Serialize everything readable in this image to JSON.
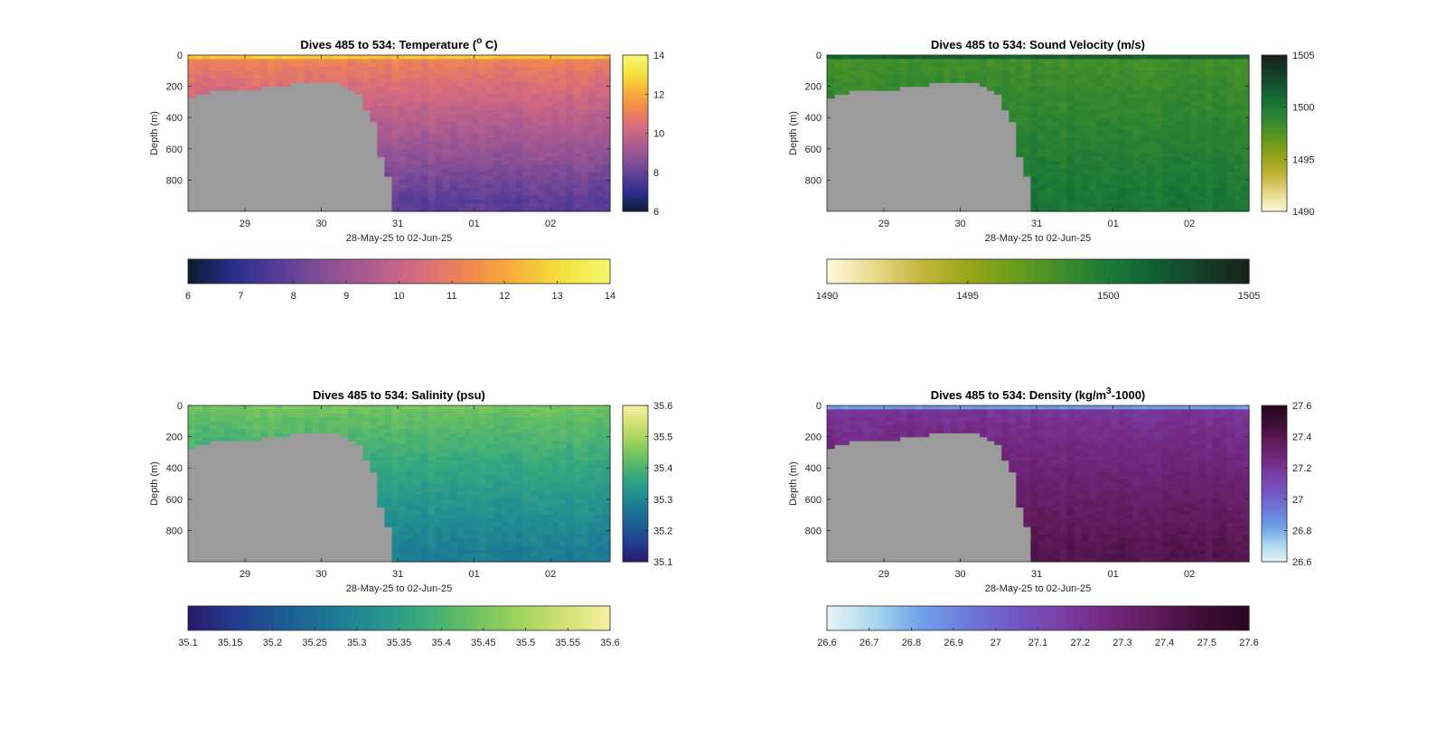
{
  "shared": {
    "xlabel": "28-May-25 to 02-Jun-25",
    "ylabel": "Depth (m)",
    "x_ticks": [
      "29",
      "30",
      "31",
      "01",
      "02"
    ],
    "y_ticks": [
      "0",
      "200",
      "400",
      "600",
      "800"
    ]
  },
  "chart_data": [
    {
      "type": "heatmap",
      "title": "Dives 485 to 534: Temperature (° C)",
      "title_prefix": "Dives 485 to 534: Temperature (",
      "title_sup": "o",
      "title_suffix": " C)",
      "xlabel": "28-May-25 to 02-Jun-25",
      "ylabel": "Depth (m)",
      "x_range_days": [
        "2025-05-28",
        "2025-06-02"
      ],
      "ylim": [
        0,
        1000
      ],
      "y_reversed": true,
      "clim": [
        6,
        14
      ],
      "colormap": [
        "#0b1d33",
        "#2b2f8f",
        "#5a3d96",
        "#8b5196",
        "#b45e8e",
        "#d86d7c",
        "#f2884d",
        "#f9b13a",
        "#f3e23d",
        "#f5f76d"
      ],
      "side_colorbar_ticks": [
        "6",
        "8",
        "10",
        "12",
        "14"
      ],
      "horizontal_colorbar_ticks": [
        "6",
        "7",
        "8",
        "9",
        "10",
        "11",
        "12",
        "13",
        "14"
      ],
      "surface_value": 12.6,
      "upper_value": 11.2,
      "deep_value": 7.8,
      "masked_color": "#9b9b9b"
    },
    {
      "type": "heatmap",
      "title": "Dives 485 to 534: Sound Velocity (m/s)",
      "title_prefix": "Dives 485 to 534: Sound Velocity (m/s)",
      "title_sup": "",
      "title_suffix": "",
      "xlabel": "28-May-25 to 02-Jun-25",
      "ylabel": "Depth (m)",
      "x_range_days": [
        "2025-05-28",
        "2025-06-02"
      ],
      "ylim": [
        0,
        1000
      ],
      "y_reversed": true,
      "clim": [
        1490,
        1505
      ],
      "colormap": [
        "#fdf8d6",
        "#e7d98a",
        "#c5b53d",
        "#9aa61a",
        "#6b9c1b",
        "#3f8d2c",
        "#1d7a37",
        "#125f32",
        "#14402a",
        "#17231a"
      ],
      "side_colorbar_ticks": [
        "1490",
        "1495",
        "1500",
        "1505"
      ],
      "horizontal_colorbar_ticks": [
        "1490",
        "1495",
        "1500",
        "1505"
      ],
      "surface_value": 1501.5,
      "upper_value": 1498.2,
      "deep_value": 1500.3,
      "masked_color": "#9b9b9b"
    },
    {
      "type": "heatmap",
      "title": "Dives 485 to 534: Salinity (psu)",
      "title_prefix": "Dives 485 to 534: Salinity (psu)",
      "title_sup": "",
      "title_suffix": "",
      "xlabel": "28-May-25 to 02-Jun-25",
      "ylabel": "Depth (m)",
      "x_range_days": [
        "2025-05-28",
        "2025-06-02"
      ],
      "ylim": [
        0,
        1000
      ],
      "y_reversed": true,
      "clim": [
        35.1,
        35.6
      ],
      "colormap": [
        "#2a1a6b",
        "#233d8f",
        "#1d5b94",
        "#1c7794",
        "#249290",
        "#3aaa7d",
        "#67bf63",
        "#9cd25b",
        "#d0e172",
        "#f5efa0"
      ],
      "side_colorbar_ticks": [
        "35.1",
        "35.2",
        "35.3",
        "35.4",
        "35.5",
        "35.6"
      ],
      "horizontal_colorbar_ticks": [
        "35.1",
        "35.15",
        "35.2",
        "35.25",
        "35.3",
        "35.35",
        "35.4",
        "35.45",
        "35.5",
        "35.55",
        "35.6"
      ],
      "surface_value": 35.45,
      "upper_value": 35.44,
      "deep_value": 35.28,
      "masked_color": "#9b9b9b"
    },
    {
      "type": "heatmap",
      "title": "Dives 485 to 534: Density (kg/m³-1000)",
      "title_prefix": "Dives 485 to 534: Density (kg/m",
      "title_sup": "3",
      "title_suffix": "-1000)",
      "xlabel": "28-May-25 to 02-Jun-25",
      "ylabel": "Depth (m)",
      "x_range_days": [
        "2025-05-28",
        "2025-06-02"
      ],
      "ylim": [
        0,
        1000
      ],
      "y_reversed": true,
      "clim": [
        26.6,
        27.6
      ],
      "colormap": [
        "#e6f3f5",
        "#a9d6ee",
        "#6ea0e8",
        "#6c79d8",
        "#7457c2",
        "#7a3fa6",
        "#72287f",
        "#5f1b5c",
        "#3f0d36",
        "#2a0720"
      ],
      "side_colorbar_ticks": [
        "26.6",
        "26.8",
        "27",
        "27.2",
        "27.4",
        "27.6"
      ],
      "horizontal_colorbar_ticks": [
        "26.6",
        "26.7",
        "26.8",
        "26.9",
        "27",
        "27.1",
        "27.2",
        "27.3",
        "27.4",
        "27.5",
        "27.6"
      ],
      "surface_value": 26.85,
      "upper_value": 27.2,
      "deep_value": 27.42,
      "masked_color": "#9b9b9b"
    }
  ]
}
